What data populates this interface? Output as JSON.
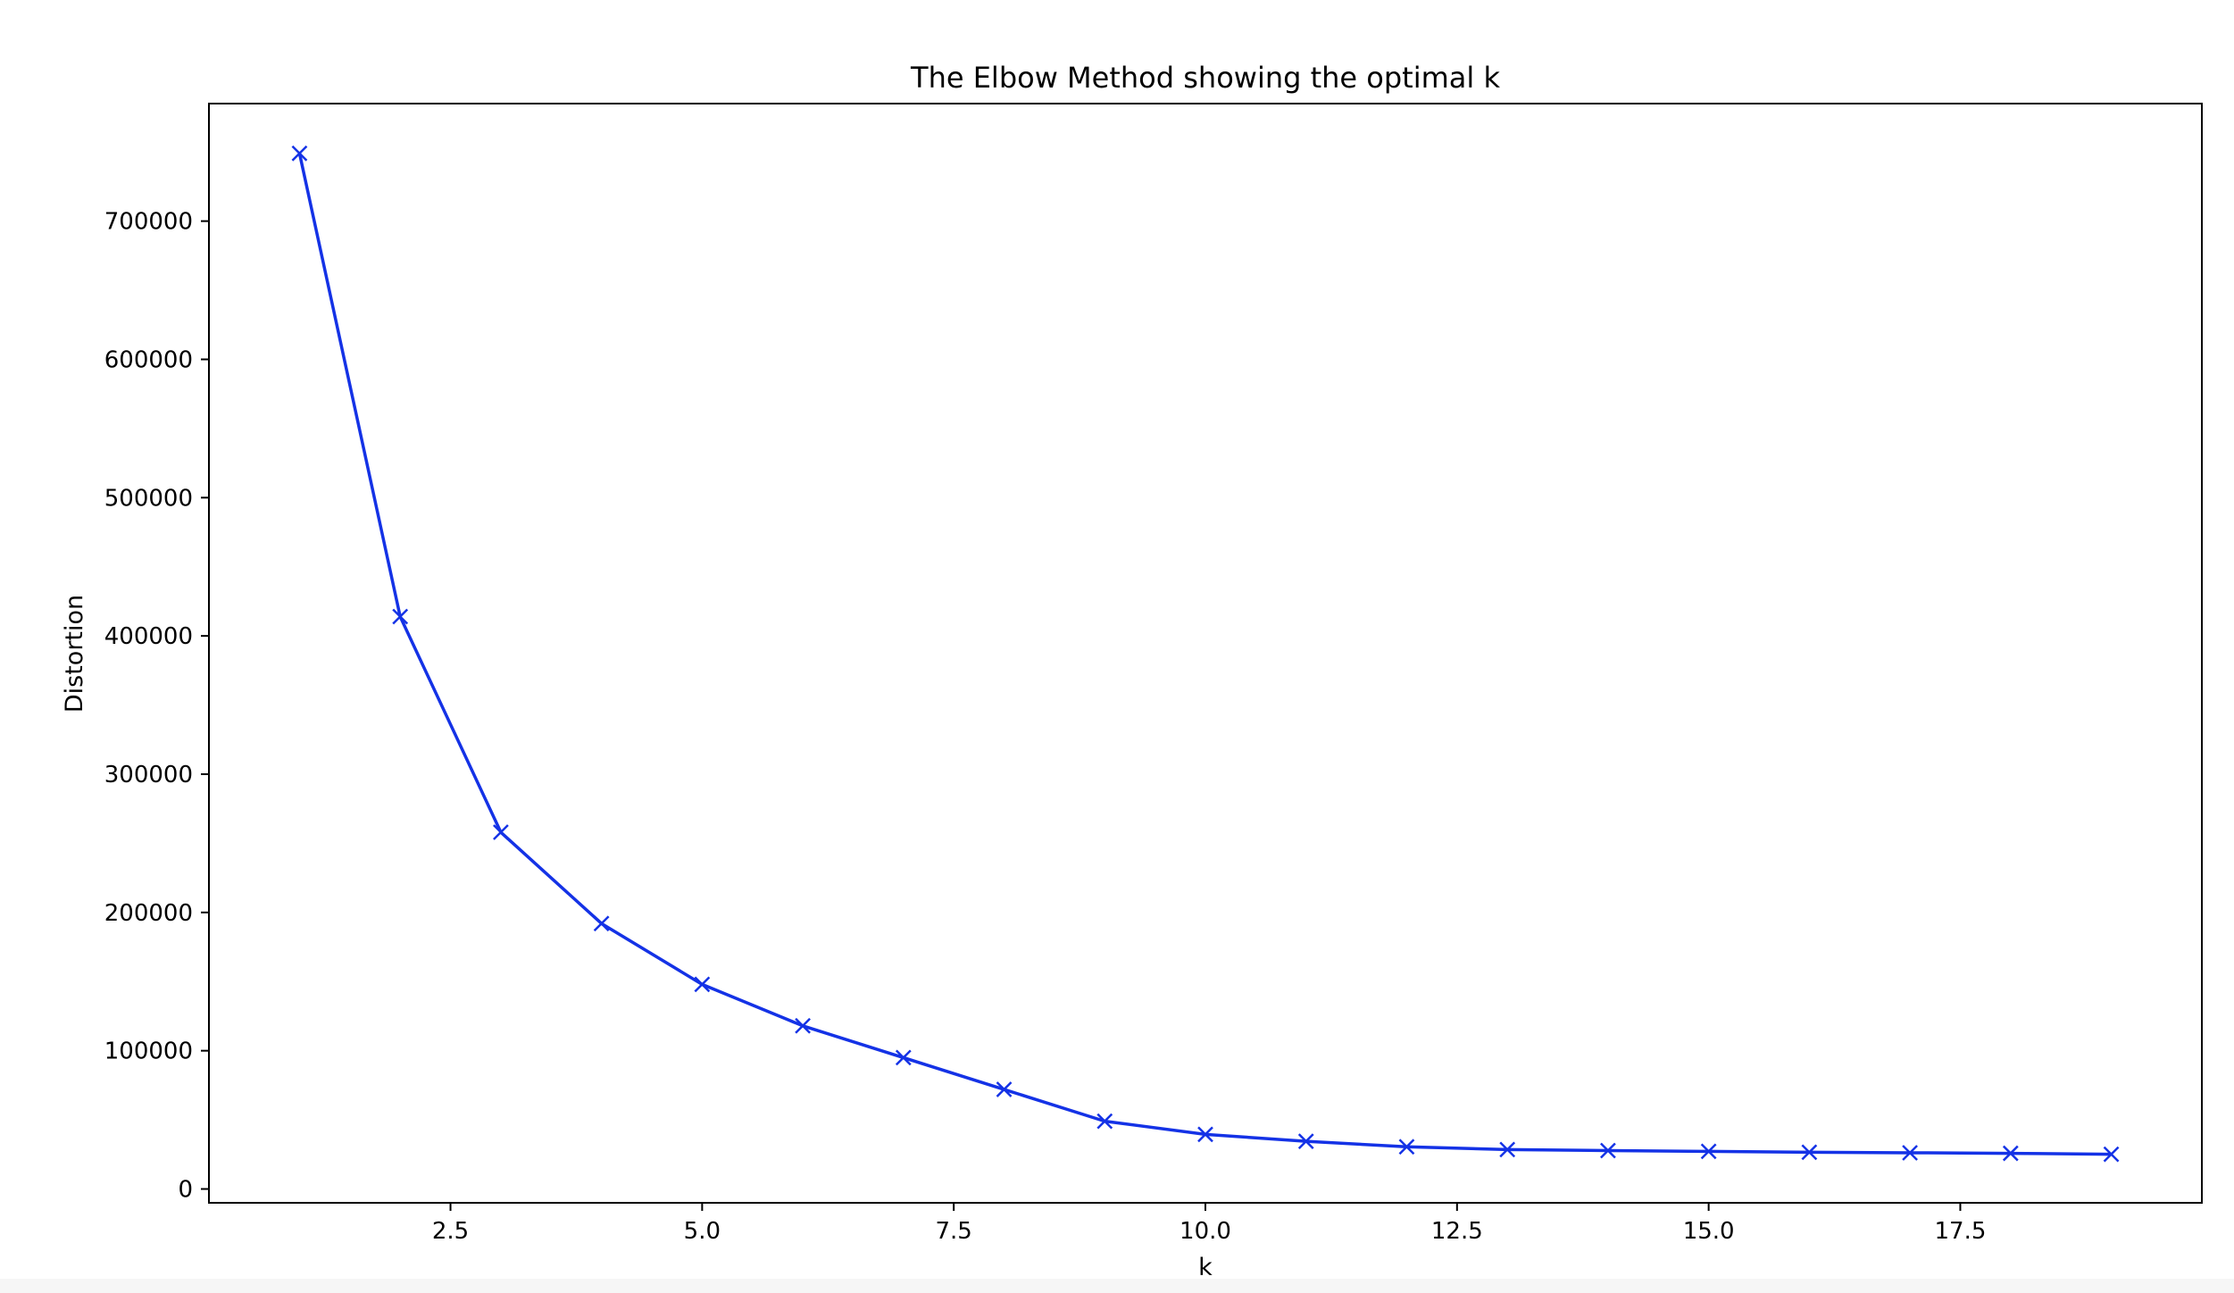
{
  "chart_data": {
    "type": "line",
    "title": "The Elbow Method showing the optimal k",
    "xlabel": "k",
    "ylabel": "Distortion",
    "x": [
      1,
      2,
      3,
      4,
      5,
      6,
      7,
      8,
      9,
      10,
      11,
      12,
      13,
      14,
      15,
      16,
      17,
      18,
      19
    ],
    "series": [
      {
        "values": [
          749000,
          414000,
          258000,
          192000,
          148000,
          118000,
          95000,
          72000,
          49000,
          39500,
          34500,
          30500,
          28500,
          27800,
          27200,
          26600,
          26200,
          25800,
          25100
        ],
        "color": "#1432e6",
        "marker": "x"
      }
    ],
    "xlim": [
      0.1,
      19.9
    ],
    "ylim": [
      -10000,
      785000
    ],
    "xticks": [
      2.5,
      5.0,
      7.5,
      10.0,
      12.5,
      15.0,
      17.5
    ],
    "xtick_labels": [
      "2.5",
      "5.0",
      "7.5",
      "10.0",
      "12.5",
      "15.0",
      "17.5"
    ],
    "yticks": [
      0,
      100000,
      200000,
      300000,
      400000,
      500000,
      600000,
      700000
    ],
    "ytick_labels": [
      "0",
      "100000",
      "200000",
      "300000",
      "400000",
      "500000",
      "600000",
      "700000"
    ],
    "grid": false,
    "legend": false
  }
}
